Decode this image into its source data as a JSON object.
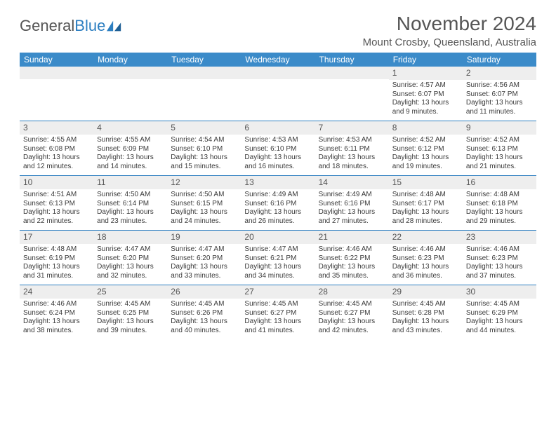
{
  "logo": {
    "text1": "General",
    "text2": "Blue"
  },
  "title": "November 2024",
  "location": "Mount Crosby, Queensland, Australia",
  "calendar": {
    "type": "table",
    "header_bg": "#3b8bc9",
    "header_color": "#ffffff",
    "daynum_bg": "#eeeeee",
    "border_color": "#2d7fc1",
    "text_color": "#3a3a3a",
    "font_size_header": 12,
    "font_size_daynum": 12,
    "font_size_body": 10,
    "columns": [
      "Sunday",
      "Monday",
      "Tuesday",
      "Wednesday",
      "Thursday",
      "Friday",
      "Saturday"
    ],
    "weeks": [
      [
        null,
        null,
        null,
        null,
        null,
        {
          "n": "1",
          "sunrise": "Sunrise: 4:57 AM",
          "sunset": "Sunset: 6:07 PM",
          "daylight": "Daylight: 13 hours and 9 minutes."
        },
        {
          "n": "2",
          "sunrise": "Sunrise: 4:56 AM",
          "sunset": "Sunset: 6:07 PM",
          "daylight": "Daylight: 13 hours and 11 minutes."
        }
      ],
      [
        {
          "n": "3",
          "sunrise": "Sunrise: 4:55 AM",
          "sunset": "Sunset: 6:08 PM",
          "daylight": "Daylight: 13 hours and 12 minutes."
        },
        {
          "n": "4",
          "sunrise": "Sunrise: 4:55 AM",
          "sunset": "Sunset: 6:09 PM",
          "daylight": "Daylight: 13 hours and 14 minutes."
        },
        {
          "n": "5",
          "sunrise": "Sunrise: 4:54 AM",
          "sunset": "Sunset: 6:10 PM",
          "daylight": "Daylight: 13 hours and 15 minutes."
        },
        {
          "n": "6",
          "sunrise": "Sunrise: 4:53 AM",
          "sunset": "Sunset: 6:10 PM",
          "daylight": "Daylight: 13 hours and 16 minutes."
        },
        {
          "n": "7",
          "sunrise": "Sunrise: 4:53 AM",
          "sunset": "Sunset: 6:11 PM",
          "daylight": "Daylight: 13 hours and 18 minutes."
        },
        {
          "n": "8",
          "sunrise": "Sunrise: 4:52 AM",
          "sunset": "Sunset: 6:12 PM",
          "daylight": "Daylight: 13 hours and 19 minutes."
        },
        {
          "n": "9",
          "sunrise": "Sunrise: 4:52 AM",
          "sunset": "Sunset: 6:13 PM",
          "daylight": "Daylight: 13 hours and 21 minutes."
        }
      ],
      [
        {
          "n": "10",
          "sunrise": "Sunrise: 4:51 AM",
          "sunset": "Sunset: 6:13 PM",
          "daylight": "Daylight: 13 hours and 22 minutes."
        },
        {
          "n": "11",
          "sunrise": "Sunrise: 4:50 AM",
          "sunset": "Sunset: 6:14 PM",
          "daylight": "Daylight: 13 hours and 23 minutes."
        },
        {
          "n": "12",
          "sunrise": "Sunrise: 4:50 AM",
          "sunset": "Sunset: 6:15 PM",
          "daylight": "Daylight: 13 hours and 24 minutes."
        },
        {
          "n": "13",
          "sunrise": "Sunrise: 4:49 AM",
          "sunset": "Sunset: 6:16 PM",
          "daylight": "Daylight: 13 hours and 26 minutes."
        },
        {
          "n": "14",
          "sunrise": "Sunrise: 4:49 AM",
          "sunset": "Sunset: 6:16 PM",
          "daylight": "Daylight: 13 hours and 27 minutes."
        },
        {
          "n": "15",
          "sunrise": "Sunrise: 4:48 AM",
          "sunset": "Sunset: 6:17 PM",
          "daylight": "Daylight: 13 hours and 28 minutes."
        },
        {
          "n": "16",
          "sunrise": "Sunrise: 4:48 AM",
          "sunset": "Sunset: 6:18 PM",
          "daylight": "Daylight: 13 hours and 29 minutes."
        }
      ],
      [
        {
          "n": "17",
          "sunrise": "Sunrise: 4:48 AM",
          "sunset": "Sunset: 6:19 PM",
          "daylight": "Daylight: 13 hours and 31 minutes."
        },
        {
          "n": "18",
          "sunrise": "Sunrise: 4:47 AM",
          "sunset": "Sunset: 6:20 PM",
          "daylight": "Daylight: 13 hours and 32 minutes."
        },
        {
          "n": "19",
          "sunrise": "Sunrise: 4:47 AM",
          "sunset": "Sunset: 6:20 PM",
          "daylight": "Daylight: 13 hours and 33 minutes."
        },
        {
          "n": "20",
          "sunrise": "Sunrise: 4:47 AM",
          "sunset": "Sunset: 6:21 PM",
          "daylight": "Daylight: 13 hours and 34 minutes."
        },
        {
          "n": "21",
          "sunrise": "Sunrise: 4:46 AM",
          "sunset": "Sunset: 6:22 PM",
          "daylight": "Daylight: 13 hours and 35 minutes."
        },
        {
          "n": "22",
          "sunrise": "Sunrise: 4:46 AM",
          "sunset": "Sunset: 6:23 PM",
          "daylight": "Daylight: 13 hours and 36 minutes."
        },
        {
          "n": "23",
          "sunrise": "Sunrise: 4:46 AM",
          "sunset": "Sunset: 6:23 PM",
          "daylight": "Daylight: 13 hours and 37 minutes."
        }
      ],
      [
        {
          "n": "24",
          "sunrise": "Sunrise: 4:46 AM",
          "sunset": "Sunset: 6:24 PM",
          "daylight": "Daylight: 13 hours and 38 minutes."
        },
        {
          "n": "25",
          "sunrise": "Sunrise: 4:45 AM",
          "sunset": "Sunset: 6:25 PM",
          "daylight": "Daylight: 13 hours and 39 minutes."
        },
        {
          "n": "26",
          "sunrise": "Sunrise: 4:45 AM",
          "sunset": "Sunset: 6:26 PM",
          "daylight": "Daylight: 13 hours and 40 minutes."
        },
        {
          "n": "27",
          "sunrise": "Sunrise: 4:45 AM",
          "sunset": "Sunset: 6:27 PM",
          "daylight": "Daylight: 13 hours and 41 minutes."
        },
        {
          "n": "28",
          "sunrise": "Sunrise: 4:45 AM",
          "sunset": "Sunset: 6:27 PM",
          "daylight": "Daylight: 13 hours and 42 minutes."
        },
        {
          "n": "29",
          "sunrise": "Sunrise: 4:45 AM",
          "sunset": "Sunset: 6:28 PM",
          "daylight": "Daylight: 13 hours and 43 minutes."
        },
        {
          "n": "30",
          "sunrise": "Sunrise: 4:45 AM",
          "sunset": "Sunset: 6:29 PM",
          "daylight": "Daylight: 13 hours and 44 minutes."
        }
      ]
    ]
  }
}
